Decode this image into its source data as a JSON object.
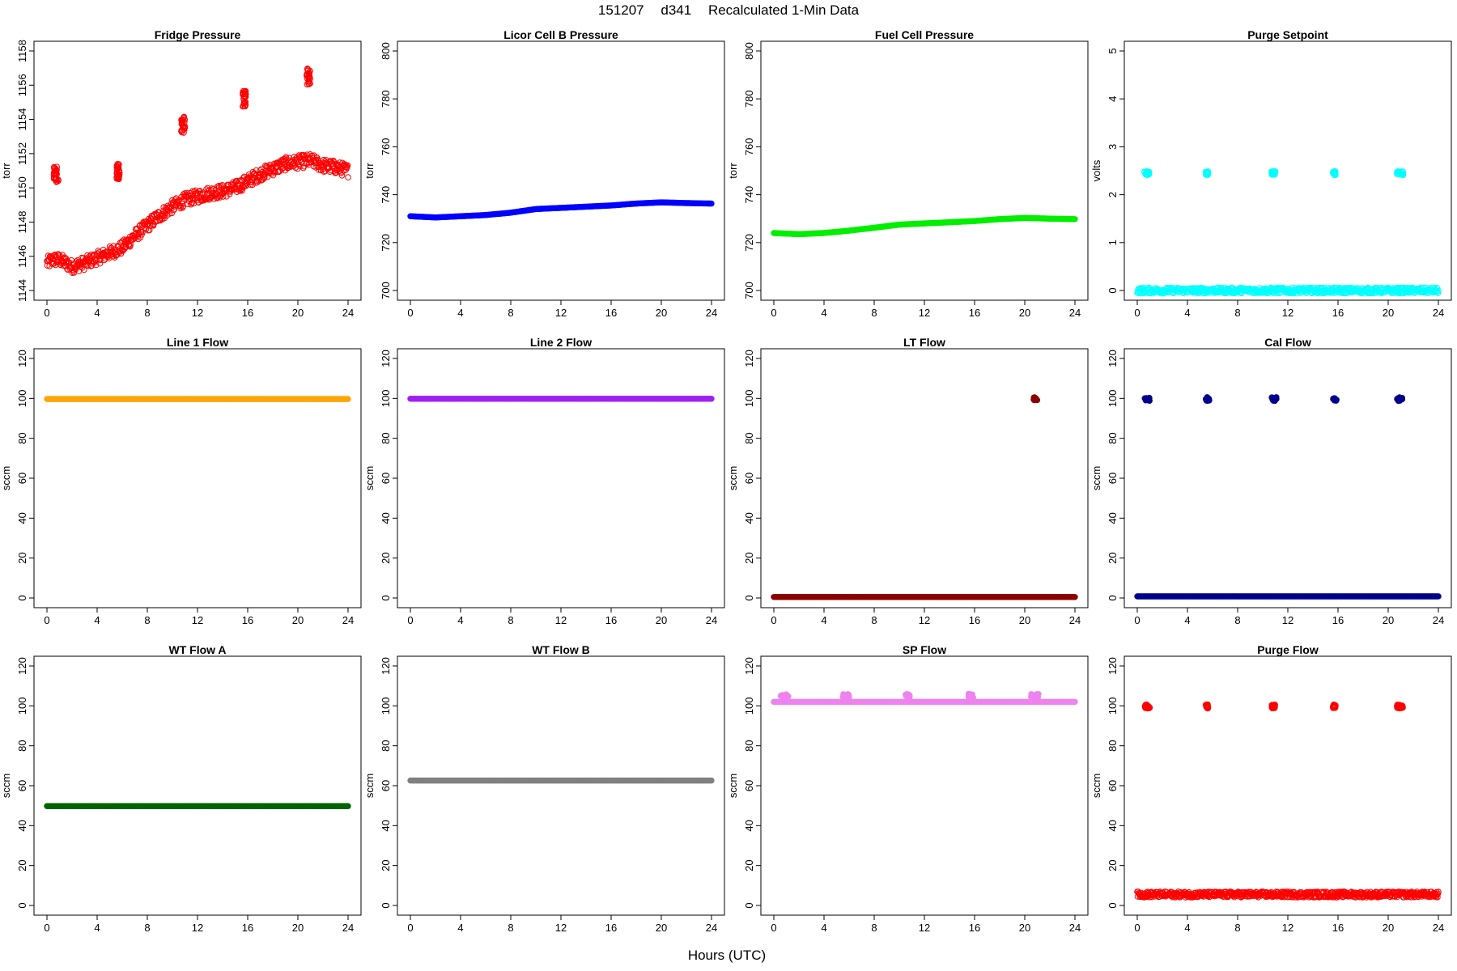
{
  "header": {
    "date": "151207",
    "site": "d341",
    "description": "Recalculated 1-Min Data"
  },
  "xlabel": "Hours (UTC)",
  "colors": {
    "fridge": "#ff0000",
    "licor": "#0000ff",
    "fuel": "#00ee00",
    "purge_setpoint": "#00ffff",
    "line1": "#ffa500",
    "line2": "#a020f0",
    "lt": "#8b0000",
    "cal": "#00008b",
    "wta": "#006400",
    "wtb": "#808080",
    "sp": "#ee82ee",
    "purge_flow": "#ff0000"
  },
  "chart_data": [
    {
      "type": "scatter",
      "key": "fridge",
      "title": "Fridge Pressure",
      "ylabel": "torr",
      "xlim": [
        0,
        24
      ],
      "xticks": [
        0,
        4,
        8,
        12,
        16,
        20,
        24
      ],
      "ylim": [
        1144,
        1158
      ],
      "yticks": [
        1144,
        1146,
        1148,
        1150,
        1152,
        1154,
        1156,
        1158
      ],
      "marker": "open-circle",
      "color_key": "fridge",
      "series_points": {
        "x": [
          0.0,
          0.5,
          1.0,
          2.0,
          3.0,
          4.0,
          5.0,
          6.0,
          7.0,
          8.0,
          9.0,
          10.0,
          11.0,
          12.0,
          13.0,
          14.0,
          15.0,
          16.0,
          17.0,
          18.0,
          19.0,
          20.0,
          21.0,
          22.0,
          23.0,
          24.0
        ],
        "y": [
          1145.6,
          1145.8,
          1145.8,
          1145.4,
          1145.6,
          1145.9,
          1146.2,
          1146.5,
          1147.2,
          1147.8,
          1148.4,
          1148.9,
          1149.3,
          1149.5,
          1149.7,
          1149.8,
          1150.0,
          1150.4,
          1150.8,
          1151.1,
          1151.4,
          1151.5,
          1151.6,
          1151.3,
          1151.2,
          1151.0
        ]
      },
      "bursts": [
        {
          "x": [
            0.55,
            0.95
          ],
          "y": 1150.8
        },
        {
          "x": [
            5.55,
            5.8
          ],
          "y": 1151.0
        },
        {
          "x": [
            10.7,
            11.0
          ],
          "y": 1153.7
        },
        {
          "x": [
            15.6,
            15.85
          ],
          "y": 1155.2
        },
        {
          "x": [
            20.7,
            21.0
          ],
          "y": 1156.5
        }
      ]
    },
    {
      "type": "scatter",
      "key": "licor",
      "title": "Licor Cell B Pressure",
      "ylabel": "torr",
      "xlim": [
        0,
        24
      ],
      "xticks": [
        0,
        4,
        8,
        12,
        16,
        20,
        24
      ],
      "ylim": [
        700,
        800
      ],
      "yticks": [
        700,
        720,
        740,
        760,
        780,
        800
      ],
      "marker": "filled-circle",
      "color_key": "licor",
      "series_points": {
        "x": [
          0,
          2,
          4,
          6,
          8,
          10,
          12,
          14,
          16,
          18,
          20,
          22,
          24
        ],
        "y": [
          731,
          730.5,
          731,
          731.5,
          732.5,
          734,
          734.5,
          735,
          735.5,
          736.3,
          736.8,
          736.5,
          736.3
        ]
      }
    },
    {
      "type": "scatter",
      "key": "fuel",
      "title": "Fuel Cell Pressure",
      "ylabel": "torr",
      "xlim": [
        0,
        24
      ],
      "xticks": [
        0,
        4,
        8,
        12,
        16,
        20,
        24
      ],
      "ylim": [
        700,
        800
      ],
      "yticks": [
        700,
        720,
        740,
        760,
        780,
        800
      ],
      "marker": "filled-circle",
      "color_key": "fuel",
      "series_points": {
        "x": [
          0,
          2,
          4,
          6,
          8,
          10,
          12,
          14,
          16,
          18,
          20,
          22,
          24
        ],
        "y": [
          724,
          723.5,
          724,
          725,
          726.2,
          727.5,
          728,
          728.5,
          729,
          729.8,
          730.3,
          730,
          729.8
        ]
      }
    },
    {
      "type": "scatter",
      "key": "purge_setpoint",
      "title": "Purge Setpoint",
      "ylabel": "volts",
      "xlim": [
        0,
        24
      ],
      "xticks": [
        0,
        4,
        8,
        12,
        16,
        20,
        24
      ],
      "ylim": [
        0,
        5
      ],
      "yticks": [
        0,
        1,
        2,
        3,
        4,
        5
      ],
      "marker": "open-circle",
      "color_key": "purge_setpoint",
      "series_points": {
        "x": [
          0,
          24
        ],
        "y": [
          0,
          0
        ]
      },
      "bursts": [
        {
          "x": [
            0.55,
            0.95
          ],
          "y": 2.45
        },
        {
          "x": [
            5.45,
            5.65
          ],
          "y": 2.45
        },
        {
          "x": [
            10.7,
            11.0
          ],
          "y": 2.45
        },
        {
          "x": [
            15.6,
            15.8
          ],
          "y": 2.45
        },
        {
          "x": [
            20.7,
            21.2
          ],
          "y": 2.45
        }
      ]
    },
    {
      "type": "scatter",
      "key": "line1",
      "title": "Line 1 Flow",
      "ylabel": "sccm",
      "xlim": [
        0,
        24
      ],
      "xticks": [
        0,
        4,
        8,
        12,
        16,
        20,
        24
      ],
      "ylim": [
        0,
        120
      ],
      "yticks": [
        0,
        20,
        40,
        60,
        80,
        100,
        120
      ],
      "marker": "filled-circle",
      "color_key": "line1",
      "series_points": {
        "x": [
          0,
          24
        ],
        "y": [
          99.7,
          99.7
        ]
      }
    },
    {
      "type": "scatter",
      "key": "line2",
      "title": "Line 2 Flow",
      "ylabel": "sccm",
      "xlim": [
        0,
        24
      ],
      "xticks": [
        0,
        4,
        8,
        12,
        16,
        20,
        24
      ],
      "ylim": [
        0,
        120
      ],
      "yticks": [
        0,
        20,
        40,
        60,
        80,
        100,
        120
      ],
      "marker": "filled-circle",
      "color_key": "line2",
      "series_points": {
        "x": [
          0,
          24
        ],
        "y": [
          99.8,
          99.8
        ]
      }
    },
    {
      "type": "scatter",
      "key": "lt",
      "title": "LT Flow",
      "ylabel": "sccm",
      "xlim": [
        0,
        24
      ],
      "xticks": [
        0,
        4,
        8,
        12,
        16,
        20,
        24
      ],
      "ylim": [
        0,
        120
      ],
      "yticks": [
        0,
        20,
        40,
        60,
        80,
        100,
        120
      ],
      "marker": "filled-circle",
      "color_key": "lt",
      "series_points": {
        "x": [
          0,
          24
        ],
        "y": [
          0.5,
          0.5
        ]
      },
      "bursts": [
        {
          "x": [
            20.7,
            21.1
          ],
          "y": 99.7
        }
      ]
    },
    {
      "type": "scatter",
      "key": "cal",
      "title": "Cal Flow",
      "ylabel": "sccm",
      "xlim": [
        0,
        24
      ],
      "xticks": [
        0,
        4,
        8,
        12,
        16,
        20,
        24
      ],
      "ylim": [
        0,
        120
      ],
      "yticks": [
        0,
        20,
        40,
        60,
        80,
        100,
        120
      ],
      "marker": "filled-circle",
      "color_key": "cal",
      "series_points": {
        "x": [
          0,
          24
        ],
        "y": [
          0.8,
          0.8
        ]
      },
      "bursts": [
        {
          "x": [
            0.6,
            1.0
          ],
          "y": 99.7
        },
        {
          "x": [
            5.45,
            5.75
          ],
          "y": 99.7
        },
        {
          "x": [
            10.7,
            11.1
          ],
          "y": 99.7
        },
        {
          "x": [
            15.6,
            15.9
          ],
          "y": 99.7
        },
        {
          "x": [
            20.7,
            21.2
          ],
          "y": 99.7
        }
      ]
    },
    {
      "type": "scatter",
      "key": "wta",
      "title": "WT Flow A",
      "ylabel": "sccm",
      "xlim": [
        0,
        24
      ],
      "xticks": [
        0,
        4,
        8,
        12,
        16,
        20,
        24
      ],
      "ylim": [
        0,
        120
      ],
      "yticks": [
        0,
        20,
        40,
        60,
        80,
        100,
        120
      ],
      "marker": "filled-circle",
      "color_key": "wta",
      "series_points": {
        "x": [
          0,
          24
        ],
        "y": [
          49.8,
          49.8
        ]
      }
    },
    {
      "type": "scatter",
      "key": "wtb",
      "title": "WT Flow B",
      "ylabel": "sccm",
      "xlim": [
        0,
        24
      ],
      "xticks": [
        0,
        4,
        8,
        12,
        16,
        20,
        24
      ],
      "ylim": [
        0,
        120
      ],
      "yticks": [
        0,
        20,
        40,
        60,
        80,
        100,
        120
      ],
      "marker": "filled-circle",
      "color_key": "wtb",
      "series_points": {
        "x": [
          0,
          24
        ],
        "y": [
          62.6,
          62.6
        ]
      }
    },
    {
      "type": "scatter",
      "key": "sp",
      "title": "SP Flow",
      "ylabel": "sccm",
      "xlim": [
        0,
        24
      ],
      "xticks": [
        0,
        4,
        8,
        12,
        16,
        20,
        24
      ],
      "ylim": [
        0,
        120
      ],
      "yticks": [
        0,
        20,
        40,
        60,
        80,
        100,
        120
      ],
      "marker": "filled-circle",
      "color_key": "sp",
      "series_points": {
        "x": [
          0,
          24
        ],
        "y": [
          102,
          102
        ]
      },
      "bursts": [
        {
          "x": [
            0.5,
            1.2
          ],
          "y": 105
        },
        {
          "x": [
            5.5,
            6.0
          ],
          "y": 105
        },
        {
          "x": [
            10.5,
            11.1
          ],
          "y": 105
        },
        {
          "x": [
            15.5,
            15.9
          ],
          "y": 105
        },
        {
          "x": [
            20.5,
            21.3
          ],
          "y": 105
        }
      ]
    },
    {
      "type": "scatter",
      "key": "purge_flow",
      "title": "Purge Flow",
      "ylabel": "sccm",
      "xlim": [
        0,
        24
      ],
      "xticks": [
        0,
        4,
        8,
        12,
        16,
        20,
        24
      ],
      "ylim": [
        0,
        120
      ],
      "yticks": [
        0,
        20,
        40,
        60,
        80,
        100,
        120
      ],
      "marker": "open-circle",
      "color_key": "purge_flow",
      "series_points": {
        "x": [
          0,
          24
        ],
        "y": [
          5.5,
          5.5
        ]
      },
      "bursts": [
        {
          "x": [
            0.6,
            1.0
          ],
          "y": 99.7
        },
        {
          "x": [
            5.45,
            5.65
          ],
          "y": 99.7
        },
        {
          "x": [
            10.7,
            11.0
          ],
          "y": 99.7
        },
        {
          "x": [
            15.6,
            15.8
          ],
          "y": 99.7
        },
        {
          "x": [
            20.7,
            21.2
          ],
          "y": 99.7
        }
      ]
    }
  ]
}
